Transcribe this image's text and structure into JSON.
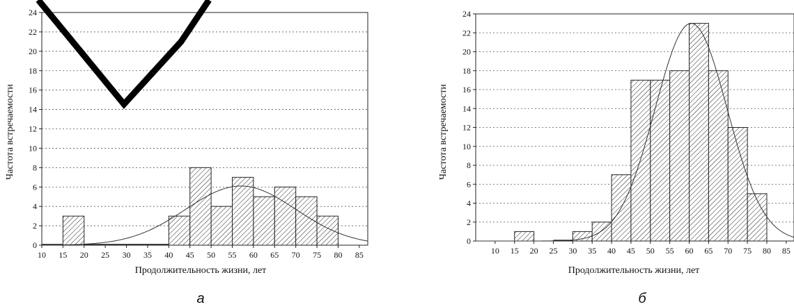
{
  "chart_data": [
    {
      "type": "bar",
      "panel_label": "а",
      "ylabel": "Частота встречаемости",
      "xlabel": "Продолжительность жизни, лет",
      "xlim": [
        10,
        87
      ],
      "ylim": [
        0,
        24
      ],
      "x_ticks": [
        "10",
        "15",
        "20",
        "25",
        "30",
        "35",
        "40",
        "45",
        "50",
        "55",
        "60",
        "65",
        "70",
        "75",
        "80",
        "85"
      ],
      "y_ticks": [
        "0",
        "2",
        "4",
        "6",
        "8",
        "10",
        "12",
        "14",
        "16",
        "18",
        "20",
        "22",
        "24"
      ],
      "grid": "horizontal dashed",
      "bins": [
        {
          "from": 10,
          "to": 15,
          "value": 0
        },
        {
          "from": 15,
          "to": 20,
          "value": 3
        },
        {
          "from": 20,
          "to": 25,
          "value": 0
        },
        {
          "from": 25,
          "to": 30,
          "value": 0
        },
        {
          "from": 30,
          "to": 35,
          "value": 0
        },
        {
          "from": 35,
          "to": 40,
          "value": 0
        },
        {
          "from": 40,
          "to": 45,
          "value": 3
        },
        {
          "from": 45,
          "to": 50,
          "value": 8
        },
        {
          "from": 50,
          "to": 55,
          "value": 4
        },
        {
          "from": 55,
          "to": 60,
          "value": 7
        },
        {
          "from": 60,
          "to": 65,
          "value": 5
        },
        {
          "from": 65,
          "to": 70,
          "value": 6
        },
        {
          "from": 70,
          "to": 75,
          "value": 5
        },
        {
          "from": 75,
          "to": 80,
          "value": 3
        }
      ],
      "fit_curve": {
        "type": "normal",
        "mean": 57,
        "peak": 6.1,
        "sd": 13
      }
    },
    {
      "type": "bar",
      "panel_label": "б",
      "ylabel": "Частота встречаемости",
      "xlabel": "Продолжительность жизни, лет",
      "xlim": [
        5,
        87
      ],
      "ylim": [
        0,
        24
      ],
      "x_ticks": [
        "10",
        "15",
        "20",
        "25",
        "30",
        "35",
        "40",
        "45",
        "50",
        "55",
        "60",
        "65",
        "70",
        "75",
        "80",
        "85"
      ],
      "y_ticks": [
        "0",
        "2",
        "4",
        "6",
        "8",
        "10",
        "12",
        "14",
        "16",
        "18",
        "20",
        "22",
        "24"
      ],
      "grid": "horizontal dashed",
      "bins": [
        {
          "from": 15,
          "to": 20,
          "value": 1
        },
        {
          "from": 25,
          "to": 30,
          "value": 0
        },
        {
          "from": 30,
          "to": 35,
          "value": 1
        },
        {
          "from": 35,
          "to": 40,
          "value": 2
        },
        {
          "from": 40,
          "to": 45,
          "value": 7
        },
        {
          "from": 45,
          "to": 50,
          "value": 17
        },
        {
          "from": 50,
          "to": 55,
          "value": 17
        },
        {
          "from": 55,
          "to": 60,
          "value": 18
        },
        {
          "from": 60,
          "to": 65,
          "value": 23
        },
        {
          "from": 65,
          "to": 70,
          "value": 18
        },
        {
          "from": 70,
          "to": 75,
          "value": 12
        },
        {
          "from": 75,
          "to": 80,
          "value": 5
        }
      ],
      "fit_curve": {
        "type": "normal",
        "mean": 60.5,
        "peak": 23,
        "sd": 9.3
      }
    }
  ]
}
